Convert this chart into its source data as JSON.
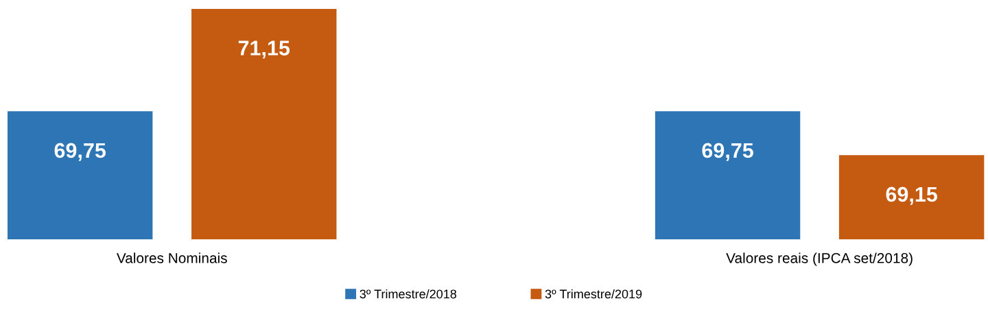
{
  "chart_data": {
    "type": "bar",
    "categories": [
      "Valores Nominais",
      "Valores reais (IPCA set/2018)"
    ],
    "series": [
      {
        "name": "3º Trimestre/2018",
        "color": "#2e75b6",
        "values": [
          69.75,
          69.75
        ],
        "value_labels": [
          "69,75",
          "69,75"
        ]
      },
      {
        "name": "3º Trimestre/2019",
        "color": "#c55a11",
        "values": [
          71.15,
          69.15
        ],
        "value_labels": [
          "71,15",
          "69,15"
        ]
      }
    ],
    "ylim": [
      68,
      71.15
    ],
    "tick_labels": "x",
    "grid": false,
    "legend": "bottom"
  }
}
